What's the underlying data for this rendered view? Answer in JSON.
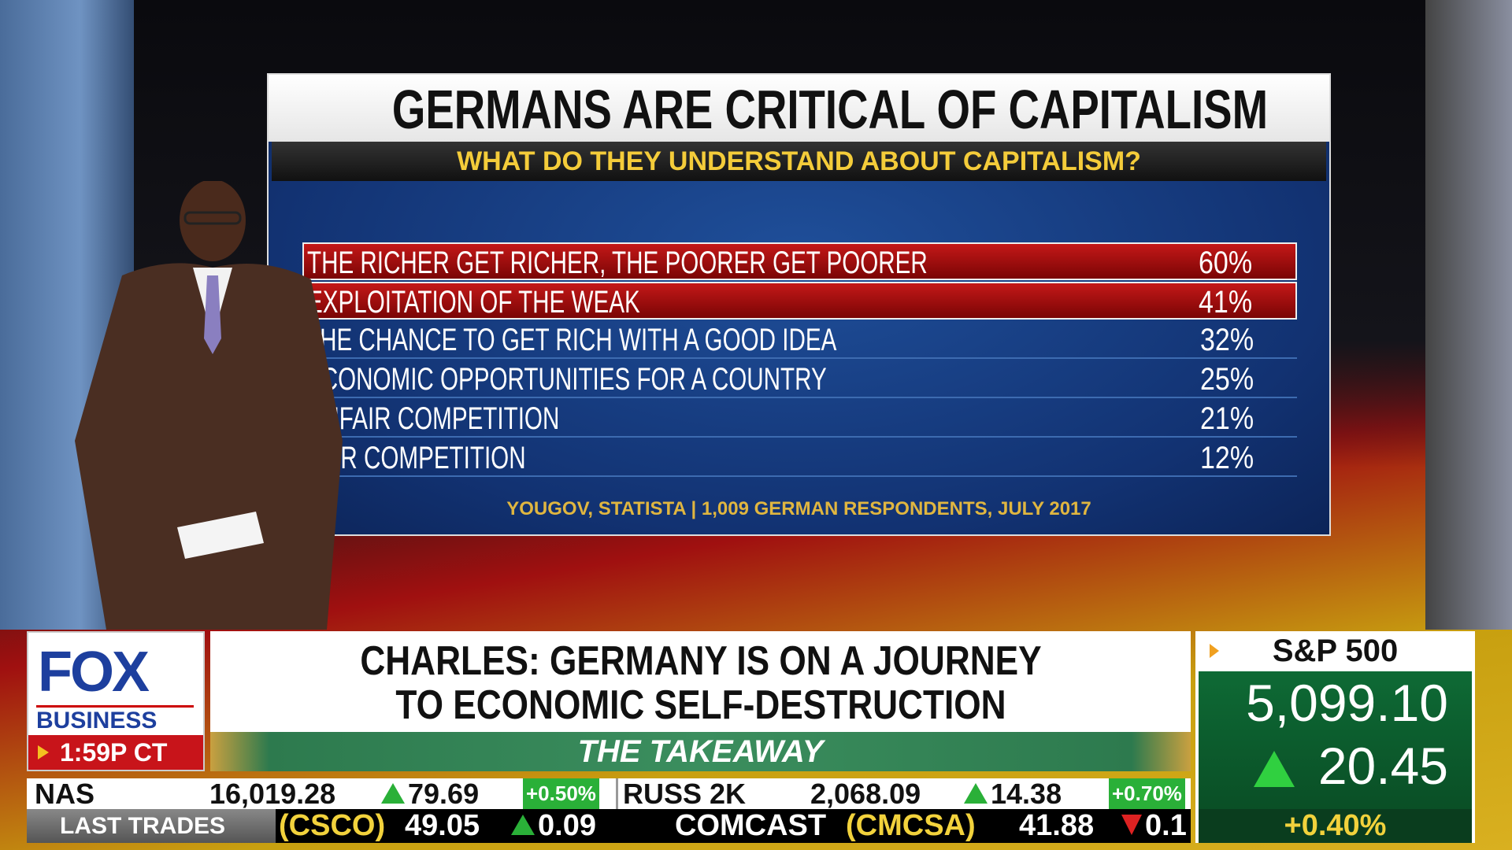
{
  "graphic": {
    "title": "GERMANS ARE CRITICAL OF CAPITALISM",
    "subtitle": "WHAT DO THEY UNDERSTAND ABOUT CAPITALISM?",
    "rows": [
      {
        "label": "THE RICHER GET RICHER, THE POORER GET POORER",
        "value": "60%",
        "highlight": true
      },
      {
        "label": "EXPLOITATION OF THE WEAK",
        "value": "41%",
        "highlight": true
      },
      {
        "label": "THE CHANCE TO GET RICH WITH A GOOD IDEA",
        "value": "32%",
        "highlight": false
      },
      {
        "label": "ECONOMIC OPPORTUNITIES FOR A COUNTRY",
        "value": "25%",
        "highlight": false
      },
      {
        "label": "UNFAIR COMPETITION",
        "value": "21%",
        "highlight": false
      },
      {
        "label": "FAIR COMPETITION",
        "value": "12%",
        "highlight": false
      }
    ],
    "source": "YOUGOV, STATISTA | 1,009 GERMAN RESPONDENTS, JULY 2017"
  },
  "logo": {
    "brand": "FOX",
    "sub": "BUSINESS",
    "time": "1:59P CT"
  },
  "headline": {
    "line1": "CHARLES: GERMANY IS ON A JOURNEY",
    "line2": "TO ECONOMIC SELF-DESTRUCTION",
    "show": "THE TAKEAWAY"
  },
  "sp500": {
    "label": "S&P 500",
    "value": "5,099.10",
    "change": "20.45",
    "pct": "+0.40%",
    "direction": "up"
  },
  "ticker": {
    "row1": [
      {
        "name": "NAS",
        "value": "16,019.28",
        "change": "79.69",
        "pct": "+0.50%"
      },
      {
        "name": "RUSS 2K",
        "value": "2,068.09",
        "change": "14.38",
        "pct": "+0.70%"
      }
    ],
    "last_trades_label": "LAST TRADES",
    "row2": [
      {
        "name": "",
        "symbol": "(CSCO)",
        "value": "49.05",
        "change": "0.09",
        "direction": "up"
      },
      {
        "name": "COMCAST",
        "symbol": "(CMCSA)",
        "value": "41.88",
        "change": "0.1",
        "direction": "down"
      }
    ]
  },
  "colors": {
    "fox_blue": "#1d3f9e",
    "highlight_red": "#c41818",
    "panel_blue": "#123272",
    "gain_green": "#2ab038",
    "ticker_yellow": "#f2d23c"
  }
}
